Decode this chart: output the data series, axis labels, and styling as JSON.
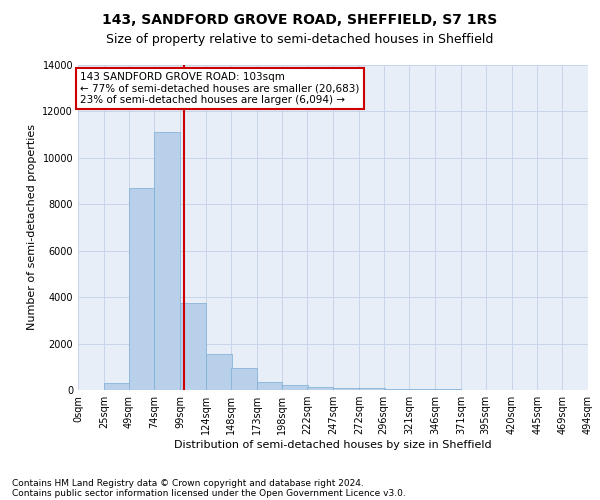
{
  "title": "143, SANDFORD GROVE ROAD, SHEFFIELD, S7 1RS",
  "subtitle": "Size of property relative to semi-detached houses in Sheffield",
  "xlabel": "Distribution of semi-detached houses by size in Sheffield",
  "ylabel": "Number of semi-detached properties",
  "footnote1": "Contains HM Land Registry data © Crown copyright and database right 2024.",
  "footnote2": "Contains public sector information licensed under the Open Government Licence v3.0.",
  "annotation_line1": "143 SANDFORD GROVE ROAD: 103sqm",
  "annotation_line2": "← 77% of semi-detached houses are smaller (20,683)",
  "annotation_line3": "23% of semi-detached houses are larger (6,094) →",
  "property_size": 103,
  "bar_left_edges": [
    0,
    25,
    49,
    74,
    99,
    124,
    148,
    173,
    198,
    222,
    247,
    272,
    296,
    321,
    346,
    371,
    395,
    420,
    445,
    469
  ],
  "bar_heights": [
    0,
    300,
    8700,
    11100,
    3750,
    1550,
    950,
    350,
    200,
    150,
    100,
    80,
    60,
    40,
    30,
    20,
    10,
    5,
    3,
    2
  ],
  "tick_labels": [
    "0sqm",
    "25sqm",
    "49sqm",
    "74sqm",
    "99sqm",
    "124sqm",
    "148sqm",
    "173sqm",
    "198sqm",
    "222sqm",
    "247sqm",
    "272sqm",
    "296sqm",
    "321sqm",
    "346sqm",
    "371sqm",
    "395sqm",
    "420sqm",
    "445sqm",
    "469sqm",
    "494sqm"
  ],
  "bar_color": "#b8d0ea",
  "bar_edge_color": "#7aadd4",
  "red_line_color": "#cc0000",
  "annotation_box_edge_color": "#cc0000",
  "grid_color": "#c8d4e8",
  "background_color": "#e8eef8",
  "ylim": [
    0,
    14000
  ],
  "yticks": [
    0,
    2000,
    4000,
    6000,
    8000,
    10000,
    12000,
    14000
  ],
  "title_fontsize": 10,
  "subtitle_fontsize": 9,
  "axis_label_fontsize": 8,
  "tick_fontsize": 7,
  "annotation_fontsize": 7.5,
  "footnote_fontsize": 6.5
}
